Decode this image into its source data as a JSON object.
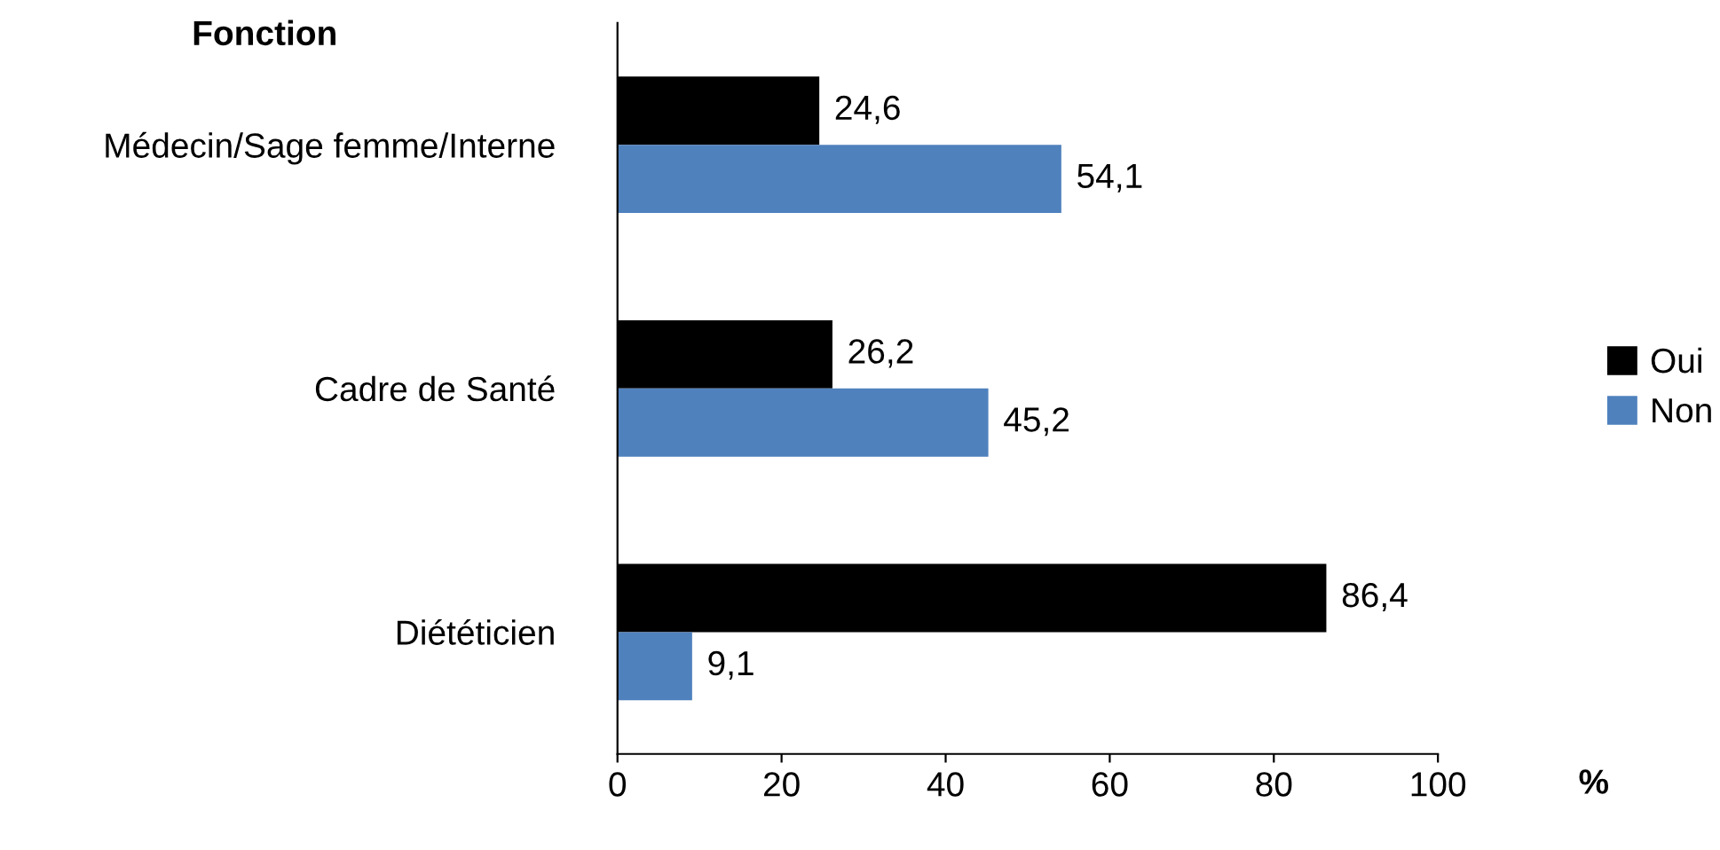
{
  "chart_data": {
    "type": "bar",
    "orientation": "horizontal",
    "ylabel": "Fonction",
    "xlabel": "%",
    "categories": [
      "Médecin/Sage femme/Interne",
      "Cadre de Santé",
      "Diététicien"
    ],
    "series": [
      {
        "name": "Oui",
        "color": "#000000",
        "values": [
          24.6,
          26.2,
          86.4
        ],
        "value_labels": [
          "24,6",
          "26,2",
          "86,4"
        ]
      },
      {
        "name": "Non",
        "color": "#4f81bd",
        "values": [
          54.1,
          45.2,
          9.1
        ],
        "value_labels": [
          "54,1",
          "45,2",
          "9,1"
        ]
      }
    ],
    "xlim": [
      0,
      100
    ],
    "xticks": [
      0,
      20,
      40,
      60,
      80,
      100
    ],
    "grid": false,
    "legend": "right"
  }
}
